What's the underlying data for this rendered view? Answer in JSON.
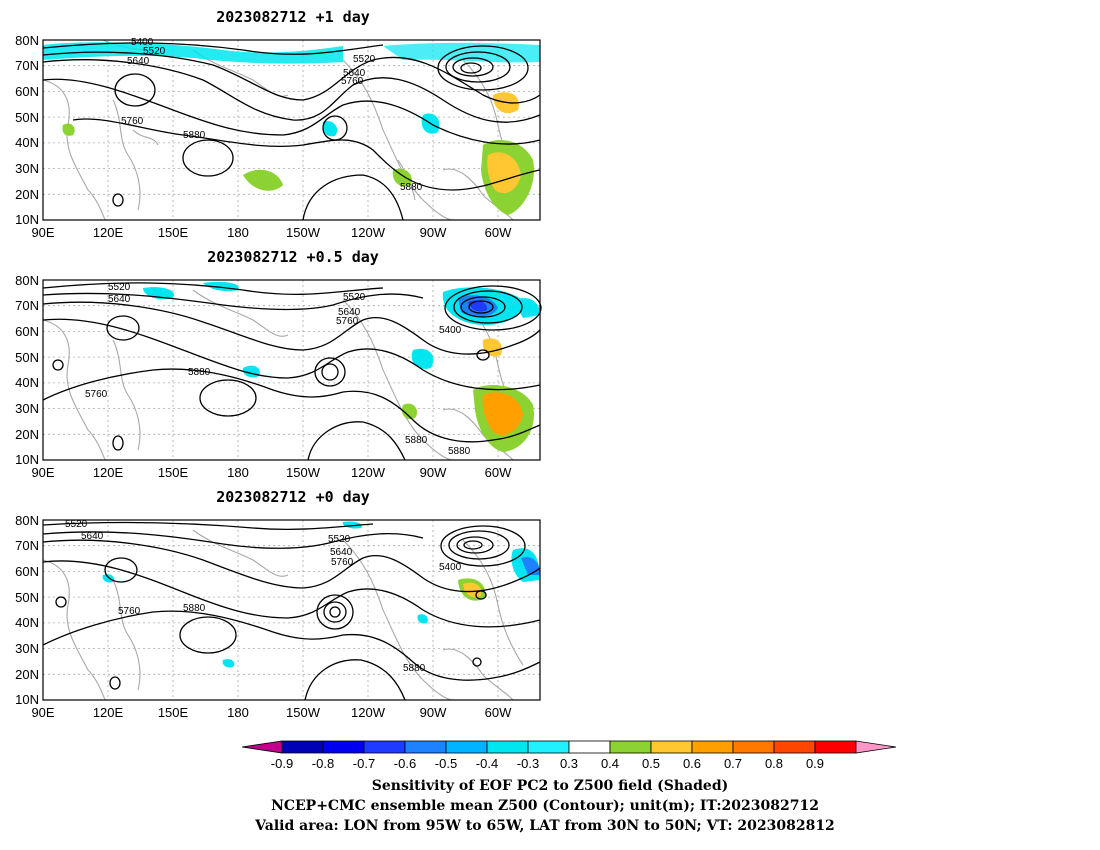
{
  "panels": [
    {
      "id": "p1",
      "title": "2023082712  +1 day",
      "contour_labels": [
        "5400",
        "5520",
        "5640",
        "5520",
        "5640",
        "5760",
        "5760",
        "5880",
        "5880"
      ]
    },
    {
      "id": "p2",
      "title": "2023082712  +0.5 day",
      "contour_labels": [
        "5520",
        "5640",
        "5520",
        "5640",
        "5760",
        "5400",
        "5880",
        "5760",
        "5880",
        "5880"
      ]
    },
    {
      "id": "p3",
      "title": "2023082712  +0 day",
      "contour_labels": [
        "5520",
        "5640",
        "5520",
        "5640",
        "5760",
        "5400",
        "5760",
        "5880",
        "5880"
      ]
    }
  ],
  "axes": {
    "lon_ticks": [
      "90E",
      "120E",
      "150E",
      "180",
      "150W",
      "120W",
      "90W",
      "60W"
    ],
    "lat_ticks": [
      "80N",
      "70N",
      "60N",
      "50N",
      "40N",
      "30N",
      "20N",
      "10N"
    ]
  },
  "colorbar": {
    "labels": [
      "-0.9",
      "-0.8",
      "-0.7",
      "-0.6",
      "-0.5",
      "-0.4",
      "-0.3",
      "0.3",
      "0.4",
      "0.5",
      "0.6",
      "0.7",
      "0.8",
      "0.9"
    ],
    "colors": [
      "#c3008c",
      "#0000b4",
      "#0000f0",
      "#1e3cff",
      "#1e82ff",
      "#00b4ff",
      "#00e6f0",
      "#20f0ff",
      "#ffffff",
      "#8cd232",
      "#ffc832",
      "#ffa000",
      "#ff7800",
      "#ff4600",
      "#ff0000",
      "#ff96c8"
    ]
  },
  "caption": {
    "line1": "Sensitivity of EOF PC2 to Z500 field (Shaded)",
    "line2": "NCEP+CMC ensemble mean Z500 (Contour); unit(m); IT:2023082712",
    "line3": "Valid area: LON from 95W to 65W, LAT from 30N to 50N; VT: 2023082812"
  }
}
